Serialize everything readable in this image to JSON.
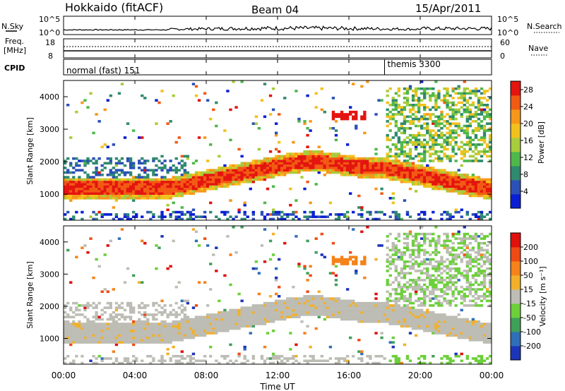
{
  "header": {
    "title": "Hokkaido (fitACF)",
    "beam": "Beam 04",
    "date": "15/Apr/2011"
  },
  "time_axis": {
    "label": "Time UT",
    "ticks": [
      "00:00",
      "04:00",
      "08:00",
      "12:00",
      "16:00",
      "20:00",
      "00:00"
    ],
    "tick_hours": [
      0,
      4,
      8,
      12,
      16,
      20,
      24
    ]
  },
  "panels": {
    "noise": {
      "left_label": "N.Sky",
      "right_label": "N.Search",
      "left_ticks": [
        "10^5",
        "10^0"
      ],
      "right_ticks": [
        "10^5",
        "10^0"
      ]
    },
    "freq": {
      "left_label_1": "Freq.",
      "left_label_2": "[MHz]",
      "right_label": "Nave",
      "left_ticks": [
        "18",
        "8"
      ],
      "right_ticks": [
        "60",
        "0"
      ]
    },
    "cpid": {
      "label": "CPID",
      "modes": [
        {
          "name": "normal (fast) 151",
          "start_hour": 0.0
        },
        {
          "name": "themis 3300",
          "start_hour": 18.0
        }
      ]
    }
  },
  "chart_data": [
    {
      "type": "heatmap",
      "name": "power",
      "ylabel": "Slant Range [km]",
      "xlim": [
        0,
        24
      ],
      "ylim": [
        200,
        4500
      ],
      "yticks": [
        1000,
        2000,
        3000,
        4000
      ],
      "colorbar": {
        "label": "Power [dB]",
        "ticks": [
          4,
          8,
          12,
          16,
          20,
          24,
          28
        ],
        "range": [
          0,
          30
        ],
        "colors": [
          "#0a1fd4",
          "#2b50b8",
          "#2f8a6e",
          "#4fb84a",
          "#a8cc3c",
          "#f2c21c",
          "#f7971a",
          "#f25a14",
          "#e4140f"
        ]
      }
    },
    {
      "type": "heatmap",
      "name": "velocity",
      "ylabel": "Slant Range [km]",
      "xlim": [
        0,
        24
      ],
      "ylim": [
        200,
        4500
      ],
      "yticks": [
        1000,
        2000,
        3000,
        4000
      ],
      "colorbar": {
        "label": "Velocity [m s⁻¹]",
        "ticks": [
          "200",
          "100",
          "50",
          "15",
          "-15",
          "-50",
          "-100",
          "-200"
        ],
        "colors": [
          "#1d35b8",
          "#2f6fb8",
          "#3fa05a",
          "#6cd03a",
          "#bdbdb5",
          "#f2b02a",
          "#f5821a",
          "#f04a14",
          "#e0100c"
        ]
      }
    }
  ]
}
